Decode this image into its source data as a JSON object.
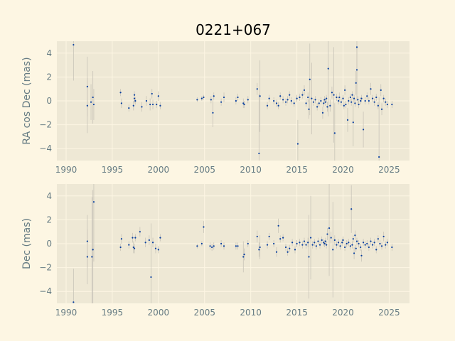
{
  "chart_data": [
    {
      "type": "scatter",
      "title": "0221+067",
      "xlabel": "",
      "ylabel": "RA cos Dec (mas)",
      "xlim": [
        1989.0,
        2027.2
      ],
      "ylim": [
        -5.0,
        5.0
      ],
      "xticks": [
        1990,
        1995,
        2000,
        2005,
        2010,
        2015,
        2020,
        2025
      ],
      "yticks": [
        -4,
        -2,
        0,
        2,
        4
      ],
      "grid": true,
      "points": [
        {
          "x": 1990.8,
          "y": 4.7,
          "err": 3.0
        },
        {
          "x": 1992.3,
          "y": 1.2,
          "err": 2.5
        },
        {
          "x": 1992.3,
          "y": -0.4,
          "err": 2.3
        },
        {
          "x": 1992.7,
          "y": -0.1,
          "err": 1.5
        },
        {
          "x": 1992.9,
          "y": 0.3,
          "err": 2.2
        },
        {
          "x": 1993.0,
          "y": -0.3,
          "err": 1.3
        },
        {
          "x": 1995.9,
          "y": 0.7,
          "err": 0.3
        },
        {
          "x": 1996.0,
          "y": -0.2,
          "err": 0.4
        },
        {
          "x": 1996.8,
          "y": -0.6,
          "err": 0.3
        },
        {
          "x": 1997.3,
          "y": -0.4,
          "err": 0.4
        },
        {
          "x": 1997.4,
          "y": 0.5,
          "err": 0.3
        },
        {
          "x": 1997.4,
          "y": 0.2,
          "err": 0.4
        },
        {
          "x": 1997.5,
          "y": 0.0,
          "err": 0.3
        },
        {
          "x": 1998.2,
          "y": -0.5,
          "err": 0.4
        },
        {
          "x": 1998.7,
          "y": 0.0,
          "err": 0.4
        },
        {
          "x": 1999.1,
          "y": -0.3,
          "err": 0.5
        },
        {
          "x": 1999.3,
          "y": 0.6,
          "err": 0.4
        },
        {
          "x": 1999.4,
          "y": -0.3,
          "err": 0.4
        },
        {
          "x": 1999.8,
          "y": -0.3,
          "err": 0.3
        },
        {
          "x": 2000.0,
          "y": 0.4,
          "err": 0.4
        },
        {
          "x": 2000.2,
          "y": -0.4,
          "err": 0.3
        },
        {
          "x": 2004.2,
          "y": 0.1,
          "err": 0.2
        },
        {
          "x": 2004.7,
          "y": 0.2,
          "err": 0.2
        },
        {
          "x": 2004.9,
          "y": 0.3,
          "err": 0.2
        },
        {
          "x": 2005.7,
          "y": 0.1,
          "err": 0.3
        },
        {
          "x": 2005.9,
          "y": -1.0,
          "err": 1.2
        },
        {
          "x": 2006.0,
          "y": 0.4,
          "err": 0.3
        },
        {
          "x": 2006.8,
          "y": -0.1,
          "err": 0.3
        },
        {
          "x": 2007.1,
          "y": 0.3,
          "err": 0.4
        },
        {
          "x": 2008.4,
          "y": 0.0,
          "err": 0.3
        },
        {
          "x": 2008.6,
          "y": 0.3,
          "err": 0.3
        },
        {
          "x": 2009.2,
          "y": -0.2,
          "err": 0.4
        },
        {
          "x": 2009.3,
          "y": -0.3,
          "err": 0.3
        },
        {
          "x": 2009.7,
          "y": 0.1,
          "err": 0.3
        },
        {
          "x": 2010.7,
          "y": 1.0,
          "err": 0.5
        },
        {
          "x": 2010.9,
          "y": -4.4,
          "err": 5.0
        },
        {
          "x": 2011.0,
          "y": 0.4,
          "err": 3.0
        },
        {
          "x": 2011.8,
          "y": -0.4,
          "err": 0.3
        },
        {
          "x": 2012.0,
          "y": 0.2,
          "err": 0.3
        },
        {
          "x": 2012.5,
          "y": 0.0,
          "err": 0.3
        },
        {
          "x": 2012.8,
          "y": -0.2,
          "err": 0.3
        },
        {
          "x": 2013.0,
          "y": -0.4,
          "err": 0.3
        },
        {
          "x": 2013.2,
          "y": 0.4,
          "err": 0.3
        },
        {
          "x": 2013.5,
          "y": 0.1,
          "err": 0.3
        },
        {
          "x": 2013.8,
          "y": -0.1,
          "err": 0.3
        },
        {
          "x": 2014.0,
          "y": 0.1,
          "err": 0.3
        },
        {
          "x": 2014.2,
          "y": 0.5,
          "err": 0.3
        },
        {
          "x": 2014.4,
          "y": 0.0,
          "err": 0.3
        },
        {
          "x": 2014.7,
          "y": -0.2,
          "err": 0.3
        },
        {
          "x": 2015.0,
          "y": 0.2,
          "err": 0.3
        },
        {
          "x": 2015.1,
          "y": -3.6,
          "err": 2.0
        },
        {
          "x": 2015.3,
          "y": 0.3,
          "err": 0.3
        },
        {
          "x": 2015.6,
          "y": 0.5,
          "err": 0.3
        },
        {
          "x": 2015.8,
          "y": 0.9,
          "err": 0.4
        },
        {
          "x": 2016.0,
          "y": -0.2,
          "err": 0.3
        },
        {
          "x": 2016.2,
          "y": 0.3,
          "err": 0.4
        },
        {
          "x": 2016.3,
          "y": -0.7,
          "err": 0.8
        },
        {
          "x": 2016.4,
          "y": 1.8,
          "err": 3.0
        },
        {
          "x": 2016.6,
          "y": 0.2,
          "err": 3.0
        },
        {
          "x": 2016.8,
          "y": -0.1,
          "err": 0.3
        },
        {
          "x": 2017.0,
          "y": 0.1,
          "err": 0.3
        },
        {
          "x": 2017.2,
          "y": -0.5,
          "err": 0.3
        },
        {
          "x": 2017.4,
          "y": -0.2,
          "err": 0.3
        },
        {
          "x": 2017.6,
          "y": 0.0,
          "err": 0.3
        },
        {
          "x": 2017.8,
          "y": -1.0,
          "err": 0.5
        },
        {
          "x": 2017.9,
          "y": -0.2,
          "err": 0.3
        },
        {
          "x": 2018.0,
          "y": 0.1,
          "err": 0.3
        },
        {
          "x": 2018.1,
          "y": -0.1,
          "err": 0.3
        },
        {
          "x": 2018.2,
          "y": 0.2,
          "err": 0.3
        },
        {
          "x": 2018.3,
          "y": -0.5,
          "err": 0.4
        },
        {
          "x": 2018.4,
          "y": 2.7,
          "err": 4.0
        },
        {
          "x": 2018.6,
          "y": -0.4,
          "err": 0.5
        },
        {
          "x": 2018.8,
          "y": 0.7,
          "err": 0.5
        },
        {
          "x": 2019.0,
          "y": 0.5,
          "err": 4.0
        },
        {
          "x": 2019.1,
          "y": -2.7,
          "err": 2.5
        },
        {
          "x": 2019.3,
          "y": 0.3,
          "err": 0.3
        },
        {
          "x": 2019.5,
          "y": 0.0,
          "err": 0.3
        },
        {
          "x": 2019.6,
          "y": 0.3,
          "err": 0.4
        },
        {
          "x": 2019.8,
          "y": -0.1,
          "err": 0.3
        },
        {
          "x": 2020.0,
          "y": 0.2,
          "err": 0.3
        },
        {
          "x": 2020.1,
          "y": -0.4,
          "err": 0.3
        },
        {
          "x": 2020.2,
          "y": 0.9,
          "err": 0.4
        },
        {
          "x": 2020.3,
          "y": -0.3,
          "err": 0.3
        },
        {
          "x": 2020.5,
          "y": -1.6,
          "err": 1.0
        },
        {
          "x": 2020.6,
          "y": 0.0,
          "err": 0.3
        },
        {
          "x": 2020.8,
          "y": 0.3,
          "err": 0.3
        },
        {
          "x": 2020.9,
          "y": -0.1,
          "err": 0.3
        },
        {
          "x": 2021.0,
          "y": 0.5,
          "err": 0.3
        },
        {
          "x": 2021.1,
          "y": -1.8,
          "err": 2.0
        },
        {
          "x": 2021.2,
          "y": 0.2,
          "err": 0.3
        },
        {
          "x": 2021.3,
          "y": -0.2,
          "err": 0.3
        },
        {
          "x": 2021.4,
          "y": 1.5,
          "err": 1.0
        },
        {
          "x": 2021.5,
          "y": 4.5,
          "err": 4.5
        },
        {
          "x": 2021.5,
          "y": 2.6,
          "err": 2.0
        },
        {
          "x": 2021.6,
          "y": 0.1,
          "err": 0.3
        },
        {
          "x": 2021.7,
          "y": -0.3,
          "err": 0.3
        },
        {
          "x": 2021.9,
          "y": 0.0,
          "err": 0.3
        },
        {
          "x": 2022.0,
          "y": 0.2,
          "err": 0.3
        },
        {
          "x": 2022.2,
          "y": -2.4,
          "err": 1.5
        },
        {
          "x": 2022.4,
          "y": 0.0,
          "err": 0.3
        },
        {
          "x": 2022.6,
          "y": 0.4,
          "err": 0.3
        },
        {
          "x": 2022.8,
          "y": 0.0,
          "err": 0.3
        },
        {
          "x": 2023.0,
          "y": 1.0,
          "err": 0.5
        },
        {
          "x": 2023.2,
          "y": 0.2,
          "err": 0.3
        },
        {
          "x": 2023.4,
          "y": -0.1,
          "err": 0.3
        },
        {
          "x": 2023.6,
          "y": 0.3,
          "err": 0.3
        },
        {
          "x": 2023.8,
          "y": -0.4,
          "err": 0.3
        },
        {
          "x": 2023.9,
          "y": -4.7,
          "err": 5.0
        },
        {
          "x": 2024.1,
          "y": 0.9,
          "err": 0.5
        },
        {
          "x": 2024.2,
          "y": -0.7,
          "err": 0.5
        },
        {
          "x": 2024.4,
          "y": 0.2,
          "err": 0.3
        },
        {
          "x": 2024.6,
          "y": -0.1,
          "err": 0.3
        },
        {
          "x": 2024.8,
          "y": -0.3,
          "err": 0.3
        },
        {
          "x": 2025.3,
          "y": -0.3,
          "err": 0.3
        }
      ]
    },
    {
      "type": "scatter",
      "title": "",
      "xlabel": "",
      "ylabel": "Dec (mas)",
      "xlim": [
        1989.0,
        2027.2
      ],
      "ylim": [
        -5.0,
        5.0
      ],
      "xticks": [
        1990,
        1995,
        2000,
        2005,
        2010,
        2015,
        2020,
        2025
      ],
      "yticks": [
        -4,
        -2,
        0,
        2,
        4
      ],
      "grid": true,
      "points": [
        {
          "x": 1990.8,
          "y": -4.9,
          "err": 2.8
        },
        {
          "x": 1992.3,
          "y": 0.2,
          "err": 2.2
        },
        {
          "x": 1992.3,
          "y": -1.1,
          "err": 2.3
        },
        {
          "x": 1992.8,
          "y": -1.1,
          "err": 5.0
        },
        {
          "x": 1992.9,
          "y": -0.5,
          "err": 5.0
        },
        {
          "x": 1993.0,
          "y": 3.5,
          "err": 5.0
        },
        {
          "x": 1995.9,
          "y": -0.3,
          "err": 0.3
        },
        {
          "x": 1996.0,
          "y": 0.4,
          "err": 0.4
        },
        {
          "x": 1996.8,
          "y": -0.1,
          "err": 0.3
        },
        {
          "x": 1997.2,
          "y": 0.5,
          "err": 0.4
        },
        {
          "x": 1997.3,
          "y": -0.3,
          "err": 0.5
        },
        {
          "x": 1997.4,
          "y": -0.4,
          "err": 0.4
        },
        {
          "x": 1997.5,
          "y": 0.5,
          "err": 0.3
        },
        {
          "x": 1998.0,
          "y": 1.0,
          "err": 0.4
        },
        {
          "x": 1998.6,
          "y": 0.1,
          "err": 0.4
        },
        {
          "x": 1999.0,
          "y": 0.3,
          "err": 0.4
        },
        {
          "x": 1999.2,
          "y": -2.8,
          "err": 4.5
        },
        {
          "x": 1999.4,
          "y": 0.1,
          "err": 0.4
        },
        {
          "x": 1999.7,
          "y": -0.4,
          "err": 0.4
        },
        {
          "x": 2000.0,
          "y": -0.5,
          "err": 0.3
        },
        {
          "x": 2000.2,
          "y": 0.5,
          "err": 0.3
        },
        {
          "x": 2004.2,
          "y": -0.2,
          "err": 0.2
        },
        {
          "x": 2004.7,
          "y": 0.0,
          "err": 0.2
        },
        {
          "x": 2004.9,
          "y": 1.4,
          "err": 0.5
        },
        {
          "x": 2005.6,
          "y": -0.2,
          "err": 0.3
        },
        {
          "x": 2005.8,
          "y": -0.3,
          "err": 0.3
        },
        {
          "x": 2006.0,
          "y": -0.2,
          "err": 0.3
        },
        {
          "x": 2006.8,
          "y": 0.0,
          "err": 0.3
        },
        {
          "x": 2007.1,
          "y": -0.2,
          "err": 0.3
        },
        {
          "x": 2008.4,
          "y": -0.2,
          "err": 0.3
        },
        {
          "x": 2008.6,
          "y": -0.2,
          "err": 0.3
        },
        {
          "x": 2009.2,
          "y": -1.1,
          "err": 1.3
        },
        {
          "x": 2009.3,
          "y": -0.9,
          "err": 0.5
        },
        {
          "x": 2009.7,
          "y": 0.0,
          "err": 0.3
        },
        {
          "x": 2010.7,
          "y": 0.6,
          "err": 0.5
        },
        {
          "x": 2010.9,
          "y": -0.5,
          "err": 0.6
        },
        {
          "x": 2011.0,
          "y": -0.3,
          "err": 1.0
        },
        {
          "x": 2011.8,
          "y": -0.1,
          "err": 0.3
        },
        {
          "x": 2012.0,
          "y": 0.6,
          "err": 0.3
        },
        {
          "x": 2012.5,
          "y": 0.0,
          "err": 0.3
        },
        {
          "x": 2012.8,
          "y": -0.7,
          "err": 0.4
        },
        {
          "x": 2013.0,
          "y": 1.5,
          "err": 0.6
        },
        {
          "x": 2013.2,
          "y": 0.4,
          "err": 0.3
        },
        {
          "x": 2013.5,
          "y": 0.5,
          "err": 0.3
        },
        {
          "x": 2013.8,
          "y": -0.3,
          "err": 0.3
        },
        {
          "x": 2014.0,
          "y": -0.7,
          "err": 0.3
        },
        {
          "x": 2014.2,
          "y": -0.4,
          "err": 0.3
        },
        {
          "x": 2014.5,
          "y": 0.1,
          "err": 0.3
        },
        {
          "x": 2014.8,
          "y": -0.5,
          "err": 0.3
        },
        {
          "x": 2015.0,
          "y": 0.0,
          "err": 0.3
        },
        {
          "x": 2015.3,
          "y": 0.1,
          "err": 0.3
        },
        {
          "x": 2015.6,
          "y": -0.1,
          "err": 0.3
        },
        {
          "x": 2015.8,
          "y": 0.2,
          "err": 0.3
        },
        {
          "x": 2016.0,
          "y": -0.1,
          "err": 0.3
        },
        {
          "x": 2016.2,
          "y": 0.1,
          "err": 0.4
        },
        {
          "x": 2016.3,
          "y": -1.1,
          "err": 3.5
        },
        {
          "x": 2016.5,
          "y": 0.5,
          "err": 3.5
        },
        {
          "x": 2016.7,
          "y": -0.1,
          "err": 0.3
        },
        {
          "x": 2016.9,
          "y": 0.1,
          "err": 0.3
        },
        {
          "x": 2017.1,
          "y": -0.2,
          "err": 0.3
        },
        {
          "x": 2017.3,
          "y": 0.2,
          "err": 0.3
        },
        {
          "x": 2017.5,
          "y": -0.1,
          "err": 0.3
        },
        {
          "x": 2017.7,
          "y": 0.3,
          "err": 0.3
        },
        {
          "x": 2017.9,
          "y": 0.1,
          "err": 0.3
        },
        {
          "x": 2018.0,
          "y": 0.0,
          "err": 0.3
        },
        {
          "x": 2018.1,
          "y": 0.2,
          "err": 0.3
        },
        {
          "x": 2018.2,
          "y": -0.1,
          "err": 0.3
        },
        {
          "x": 2018.3,
          "y": 0.8,
          "err": 0.5
        },
        {
          "x": 2018.5,
          "y": 1.3,
          "err": 4.0
        },
        {
          "x": 2018.7,
          "y": 0.5,
          "err": 0.5
        },
        {
          "x": 2018.9,
          "y": -0.5,
          "err": 4.0
        },
        {
          "x": 2019.1,
          "y": 0.3,
          "err": 0.4
        },
        {
          "x": 2019.3,
          "y": -0.1,
          "err": 0.3
        },
        {
          "x": 2019.5,
          "y": 0.1,
          "err": 0.3
        },
        {
          "x": 2019.7,
          "y": -0.2,
          "err": 0.3
        },
        {
          "x": 2019.9,
          "y": 0.1,
          "err": 0.3
        },
        {
          "x": 2020.0,
          "y": 0.3,
          "err": 0.3
        },
        {
          "x": 2020.2,
          "y": -0.3,
          "err": 0.3
        },
        {
          "x": 2020.4,
          "y": 0.0,
          "err": 0.3
        },
        {
          "x": 2020.6,
          "y": 0.1,
          "err": 0.3
        },
        {
          "x": 2020.8,
          "y": -0.2,
          "err": 0.3
        },
        {
          "x": 2020.9,
          "y": 2.9,
          "err": 2.0
        },
        {
          "x": 2021.0,
          "y": -0.1,
          "err": 0.3
        },
        {
          "x": 2021.1,
          "y": 0.4,
          "err": 0.3
        },
        {
          "x": 2021.2,
          "y": -0.8,
          "err": 0.5
        },
        {
          "x": 2021.3,
          "y": 0.7,
          "err": 0.4
        },
        {
          "x": 2021.4,
          "y": -0.4,
          "err": 0.3
        },
        {
          "x": 2021.5,
          "y": 0.2,
          "err": 0.3
        },
        {
          "x": 2021.7,
          "y": 0.0,
          "err": 0.3
        },
        {
          "x": 2021.9,
          "y": -0.3,
          "err": 0.3
        },
        {
          "x": 2022.0,
          "y": -1.0,
          "err": 0.5
        },
        {
          "x": 2022.2,
          "y": 0.1,
          "err": 0.3
        },
        {
          "x": 2022.4,
          "y": -0.1,
          "err": 0.3
        },
        {
          "x": 2022.6,
          "y": 0.0,
          "err": 0.3
        },
        {
          "x": 2022.8,
          "y": -0.3,
          "err": 0.3
        },
        {
          "x": 2023.0,
          "y": 0.2,
          "err": 0.3
        },
        {
          "x": 2023.2,
          "y": -0.1,
          "err": 0.3
        },
        {
          "x": 2023.4,
          "y": 0.1,
          "err": 0.3
        },
        {
          "x": 2023.6,
          "y": -0.5,
          "err": 0.3
        },
        {
          "x": 2023.8,
          "y": 0.4,
          "err": 0.3
        },
        {
          "x": 2024.0,
          "y": 0.0,
          "err": 0.3
        },
        {
          "x": 2024.2,
          "y": -0.2,
          "err": 0.3
        },
        {
          "x": 2024.4,
          "y": 0.6,
          "err": 0.4
        },
        {
          "x": 2024.6,
          "y": -0.1,
          "err": 0.3
        },
        {
          "x": 2024.8,
          "y": 0.1,
          "err": 0.3
        },
        {
          "x": 2025.3,
          "y": -0.3,
          "err": 0.3
        }
      ]
    }
  ],
  "colors": {
    "figure_bg": "#fdf6e3",
    "axes_bg": "#eee8d5",
    "grid": "#fdf6e3",
    "tick_text": "#657b83",
    "point": "#073fa0",
    "errorbar": "#c8c4b8"
  }
}
